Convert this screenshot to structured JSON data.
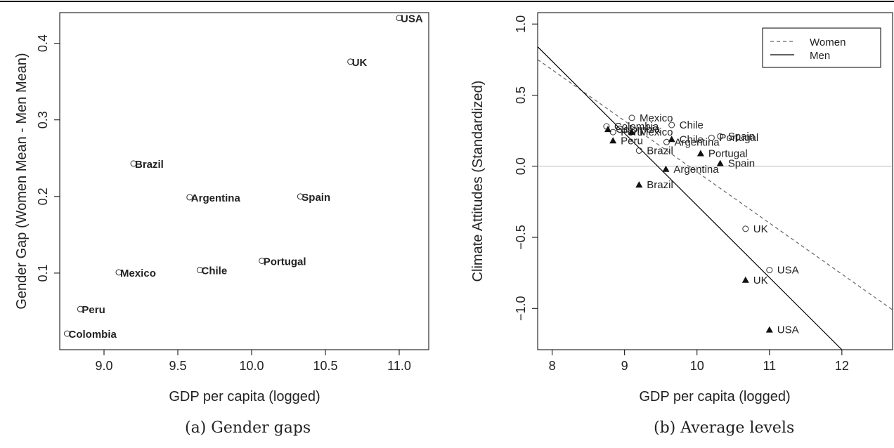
{
  "captions": {
    "a": "(a) Gender gaps",
    "b": "(b) Average levels"
  },
  "chart_data": [
    {
      "type": "scatter",
      "title": "",
      "xlabel": "GDP per capita (logged)",
      "ylabel": "Gender Gap (Women Mean - Men Mean)",
      "xlim": [
        8.7,
        11.2
      ],
      "ylim": [
        0.0,
        0.44
      ],
      "xticks": [
        9.0,
        9.5,
        10.0,
        10.5,
        11.0
      ],
      "xtick_labels": [
        "9.0",
        "9.5",
        "10.0",
        "10.5",
        "11.0"
      ],
      "yticks": [
        0.1,
        0.2,
        0.3,
        0.4
      ],
      "ytick_labels": [
        "0.1",
        "0.2",
        "0.3",
        "0.4"
      ],
      "grid": false,
      "points": [
        {
          "label": "USA",
          "x": 11.0,
          "y": 0.433
        },
        {
          "label": "UK",
          "x": 10.67,
          "y": 0.376
        },
        {
          "label": "Brazil",
          "x": 9.2,
          "y": 0.243
        },
        {
          "label": "Argentina",
          "x": 9.58,
          "y": 0.199
        },
        {
          "label": "Spain",
          "x": 10.33,
          "y": 0.2
        },
        {
          "label": "Portugal",
          "x": 10.07,
          "y": 0.116
        },
        {
          "label": "Mexico",
          "x": 9.1,
          "y": 0.101
        },
        {
          "label": "Chile",
          "x": 9.65,
          "y": 0.104
        },
        {
          "label": "Peru",
          "x": 8.84,
          "y": 0.053
        },
        {
          "label": "Colombia",
          "x": 8.75,
          "y": 0.021
        }
      ]
    },
    {
      "type": "scatter",
      "title": "",
      "xlabel": "GDP per capita (logged)",
      "ylabel": "Climate Attitudes (Standardized)",
      "xlim": [
        7.8,
        12.7
      ],
      "ylim": [
        -1.29,
        1.08
      ],
      "xticks": [
        8,
        9,
        10,
        11,
        12
      ],
      "xtick_labels": [
        "8",
        "9",
        "10",
        "11",
        "12"
      ],
      "yticks": [
        -1.0,
        -0.5,
        0.0,
        0.5,
        1.0
      ],
      "ytick_labels": [
        "−1.0",
        "−0.5",
        "0.0",
        "0.5",
        "1.0"
      ],
      "grid": false,
      "reference_line_y": 0.0,
      "legend": {
        "position": "top-right",
        "entries": [
          "Women",
          "Men"
        ]
      },
      "series": [
        {
          "name": "Women",
          "marker": "open-circle",
          "points": [
            {
              "label": "Mexico",
              "x": 9.1,
              "y": 0.34
            },
            {
              "label": "Chile",
              "x": 9.65,
              "y": 0.29
            },
            {
              "label": "Colombia",
              "x": 8.75,
              "y": 0.28
            },
            {
              "label": "Peru",
              "x": 8.84,
              "y": 0.24
            },
            {
              "label": "Argentina",
              "x": 9.58,
              "y": 0.17
            },
            {
              "label": "Portugal",
              "x": 10.2,
              "y": 0.2
            },
            {
              "label": "Spain",
              "x": 10.32,
              "y": 0.21
            },
            {
              "label": "Brazil",
              "x": 9.2,
              "y": 0.11
            },
            {
              "label": "UK",
              "x": 10.67,
              "y": -0.44
            },
            {
              "label": "USA",
              "x": 11.0,
              "y": -0.73
            }
          ],
          "fit_line": [
            {
              "x": 7.8,
              "y": 0.75
            },
            {
              "x": 12.7,
              "y": -1.01
            }
          ]
        },
        {
          "name": "Men",
          "marker": "filled-triangle",
          "points": [
            {
              "label": "Colombia",
              "x": 8.77,
              "y": 0.26
            },
            {
              "label": "Mexico",
              "x": 9.1,
              "y": 0.24
            },
            {
              "label": "Chile",
              "x": 9.65,
              "y": 0.19
            },
            {
              "label": "Peru",
              "x": 8.84,
              "y": 0.18
            },
            {
              "label": "Portugal",
              "x": 10.05,
              "y": 0.09
            },
            {
              "label": "Spain",
              "x": 10.32,
              "y": 0.02
            },
            {
              "label": "Argentina",
              "x": 9.57,
              "y": -0.02
            },
            {
              "label": "Brazil",
              "x": 9.2,
              "y": -0.13
            },
            {
              "label": "UK",
              "x": 10.67,
              "y": -0.8
            },
            {
              "label": "USA",
              "x": 11.0,
              "y": -1.15
            }
          ],
          "fit_line": [
            {
              "x": 7.8,
              "y": 0.84
            },
            {
              "x": 12.0,
              "y": -1.29
            }
          ]
        }
      ]
    }
  ]
}
